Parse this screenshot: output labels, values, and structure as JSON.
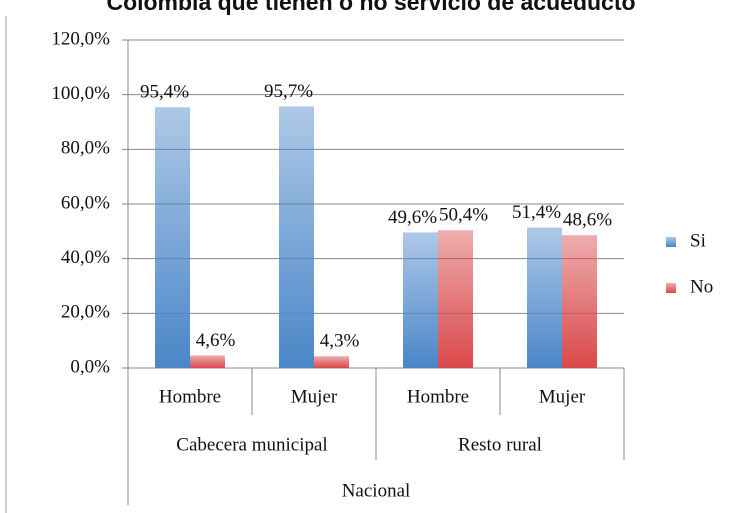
{
  "chart_data": {
    "type": "bar",
    "title": "Colombia que tienen o no servicio de acueducto",
    "category_groups": [
      {
        "name": "Cabecera municipal",
        "categories": [
          "Hombre",
          "Mujer"
        ]
      },
      {
        "name": "Resto rural",
        "categories": [
          "Hombre",
          "Mujer"
        ]
      }
    ],
    "supergroup": "Nacional",
    "series": [
      {
        "name": "Si",
        "color": "#4a86c8",
        "values": [
          95.4,
          95.7,
          49.6,
          51.4
        ],
        "value_labels": [
          "95,4%",
          "95,7%",
          "49,6%",
          "51,4%"
        ]
      },
      {
        "name": "No",
        "color": "#d9484a",
        "values": [
          4.6,
          4.3,
          50.4,
          48.6
        ],
        "value_labels": [
          "4,6%",
          "4,3%",
          "50,4%",
          "48,6%"
        ]
      }
    ],
    "ylim": [
      0,
      120
    ],
    "yticks": [
      {
        "value": 0,
        "label": "0,0%"
      },
      {
        "value": 20,
        "label": "20,0%"
      },
      {
        "value": 40,
        "label": "40,0%"
      },
      {
        "value": 60,
        "label": "60,0%"
      },
      {
        "value": 80,
        "label": "80,0%"
      },
      {
        "value": 100,
        "label": "100,0%"
      },
      {
        "value": 120,
        "label": "120,0%"
      }
    ],
    "grid": true,
    "legend": "right"
  }
}
